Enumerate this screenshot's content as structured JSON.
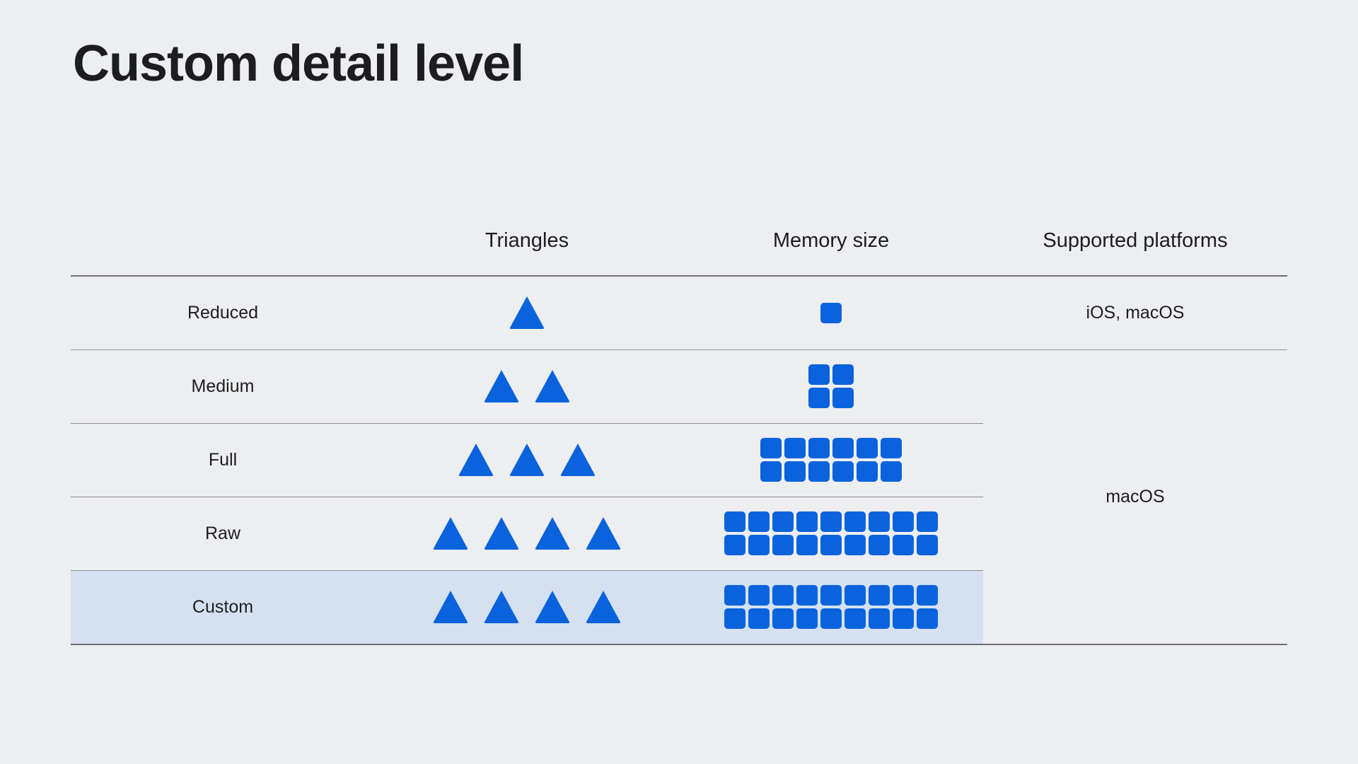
{
  "slide": {
    "title": "Custom detail level"
  },
  "table": {
    "headers": {
      "label": "",
      "triangles": "Triangles",
      "memory": "Memory size",
      "platforms": "Supported platforms"
    },
    "rows": [
      {
        "label": "Reduced",
        "triangles": 1,
        "memory_blocks": 1,
        "memory_cols": 1,
        "highlighted": false
      },
      {
        "label": "Medium",
        "triangles": 2,
        "memory_blocks": 4,
        "memory_cols": 2,
        "highlighted": false
      },
      {
        "label": "Full",
        "triangles": 3,
        "memory_blocks": 12,
        "memory_cols": 6,
        "highlighted": false
      },
      {
        "label": "Raw",
        "triangles": 4,
        "memory_blocks": 18,
        "memory_cols": 9,
        "highlighted": false
      },
      {
        "label": "Custom",
        "triangles": 4,
        "memory_blocks": 18,
        "memory_cols": 9,
        "highlighted": true
      }
    ],
    "platforms": [
      {
        "text": "iOS, macOS",
        "rows": [
          "Reduced"
        ]
      },
      {
        "text": "macOS",
        "rows": [
          "Medium",
          "Full",
          "Raw",
          "Custom"
        ]
      }
    ]
  },
  "colors": {
    "background": "#EDEEF0",
    "accent_blue": "#0A63DC",
    "highlight_row": "#D5E1F1",
    "text": "#1D1D1F"
  },
  "icons": {
    "triangle": "triangle-icon",
    "memory_block": "memory-block-icon"
  }
}
